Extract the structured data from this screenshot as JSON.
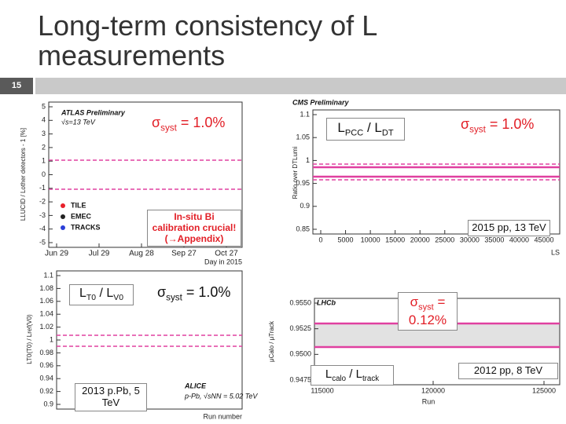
{
  "header": {
    "slide_number": "15",
    "title": "Long-term consistency of L measurements"
  },
  "panels": [
    {
      "inset_labels": [
        "ATLAS Preliminary",
        "√s=13 TeV"
      ],
      "y_label": "LLUCID / Lother detectors - 1 [%]",
      "x_label": "Day in 2015",
      "yticks": [
        "5",
        "4",
        "3",
        "2",
        "1",
        "0",
        "-1",
        "-2",
        "-3",
        "-4",
        "-5"
      ],
      "xticks": [
        "Jun 29",
        "Jul 29",
        "Aug 28",
        "Sep 27",
        "Oct 27"
      ],
      "legend": [
        {
          "label": "TILE",
          "color": "#e8202a"
        },
        {
          "label": "EMEC",
          "color": "#222222"
        },
        {
          "label": "TRACKS",
          "color": "#2a3fd8"
        }
      ]
    },
    {
      "inset_labels": [
        "CMS Preliminary"
      ],
      "y_label": "Ratio over DTLumi",
      "x_label": "LS",
      "yticks": [
        "1.1",
        "1.05",
        "1",
        "0.95",
        "0.9",
        "0.85"
      ],
      "xticks": [
        "0",
        "5000",
        "10000",
        "15000",
        "20000",
        "25000",
        "30000",
        "35000",
        "40000",
        "45000"
      ],
      "legend": []
    },
    {
      "inset_labels": [
        "ALICE",
        "p-Pb, √sNN = 5.02 TeV"
      ],
      "y_label": "LT0(T0) / Lref(V0)",
      "x_label": "Run number",
      "yticks": [
        "1.1",
        "1.08",
        "1.06",
        "1.04",
        "1.02",
        "1",
        "0.98",
        "0.96",
        "0.94",
        "0.92",
        "0.9"
      ],
      "xticks": [],
      "legend": []
    },
    {
      "inset_labels": [
        "LHCb"
      ],
      "y_label": "μCalo / μTrack",
      "x_label": "Run",
      "yticks": [
        "0.9550",
        "0.9525",
        "0.9500",
        "0.9475"
      ],
      "xticks": [
        "115000",
        "120000",
        "125000"
      ],
      "legend": []
    }
  ],
  "annotations": [
    {
      "color": "#e21e26",
      "boxed": false,
      "segments": [
        {
          "text": "σ"
        },
        {
          "text": "syst",
          "sub": true
        },
        {
          "text": " = 1.0%"
        }
      ]
    },
    {
      "color": "#e21e26",
      "boxed": true,
      "segments": [
        {
          "text": "In-situ Bi calibration crucial! (→Appendix)"
        }
      ]
    },
    {
      "color": "#111111",
      "boxed": true,
      "segments": [
        {
          "text": "L"
        },
        {
          "text": "PCC",
          "sub": true
        },
        {
          "text": " / L"
        },
        {
          "text": "DT",
          "sub": true
        }
      ]
    },
    {
      "color": "#e21e26",
      "boxed": false,
      "segments": [
        {
          "text": "σ"
        },
        {
          "text": "syst",
          "sub": true
        },
        {
          "text": " = 1.0%"
        }
      ]
    },
    {
      "color": "#111111",
      "boxed": true,
      "segments": [
        {
          "text": "2015 pp, 13 TeV"
        }
      ]
    },
    {
      "color": "#111111",
      "boxed": true,
      "segments": [
        {
          "text": "L"
        },
        {
          "text": "T0",
          "sub": true
        },
        {
          "text": " / L"
        },
        {
          "text": "V0",
          "sub": true
        }
      ]
    },
    {
      "color": "#111111",
      "boxed": false,
      "segments": [
        {
          "text": "σ"
        },
        {
          "text": "syst",
          "sub": true
        },
        {
          "text": " = 1.0%"
        }
      ]
    },
    {
      "color": "#111111",
      "boxed": true,
      "segments": [
        {
          "text": "2013 p.Pb, 5 TeV"
        }
      ]
    },
    {
      "color": "#e21e26",
      "boxed": true,
      "segments": [
        {
          "text": "σ"
        },
        {
          "text": "syst",
          "sub": true
        },
        {
          "text": " = 0.12%"
        }
      ]
    },
    {
      "color": "#111111",
      "boxed": true,
      "segments": [
        {
          "text": "L"
        },
        {
          "text": "calo",
          "sub": true
        },
        {
          "text": " / L"
        },
        {
          "text": "track",
          "sub": true
        }
      ]
    },
    {
      "color": "#111111",
      "boxed": true,
      "segments": [
        {
          "text": "2012 pp, 8 TeV"
        }
      ]
    }
  ]
}
